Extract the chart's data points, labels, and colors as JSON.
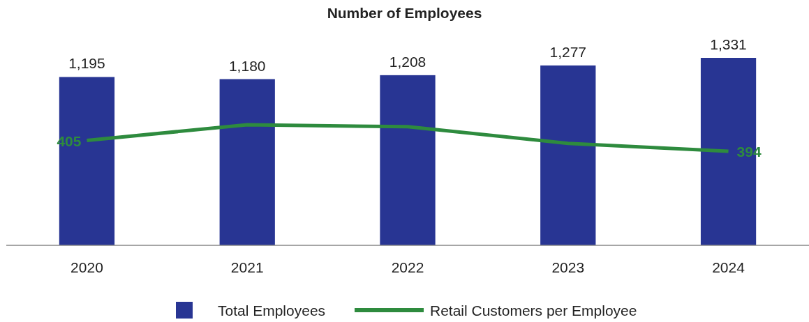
{
  "chart_data": {
    "type": "bar",
    "title": "Number of Employees",
    "categories": [
      "2020",
      "2021",
      "2022",
      "2023",
      "2024"
    ],
    "series": [
      {
        "name": "Total Employees",
        "color": "#283593",
        "values": [
          1195,
          1180,
          1208,
          1277,
          1331
        ],
        "value_labels": [
          "1,195",
          "1,180",
          "1,208",
          "1,277",
          "1,331"
        ]
      },
      {
        "name": "Retail Customers per Employee",
        "type": "line",
        "axis": "y2",
        "color": "#2e8b3e",
        "values": [
          405,
          421,
          419,
          402,
          394
        ],
        "value_labels": [
          "405",
          null,
          null,
          null,
          "394"
        ]
      }
    ],
    "tick_labels": "x",
    "grid": false,
    "legend": "bottom",
    "marker": "none",
    "line_style": "solid"
  }
}
